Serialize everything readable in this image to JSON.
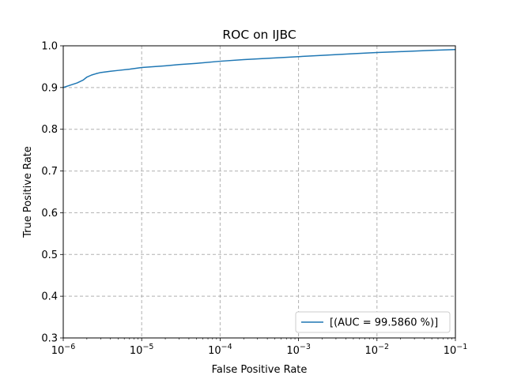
{
  "chart_data": {
    "type": "line",
    "title": "ROC on IJBC",
    "xlabel": "False Positive Rate",
    "ylabel": "True Positive Rate",
    "xscale": "log",
    "xlim": [
      1e-06,
      0.1
    ],
    "ylim": [
      0.3,
      1.0
    ],
    "x_ticks": [
      {
        "value": 1e-06,
        "base": "10",
        "exp": "−6"
      },
      {
        "value": 1e-05,
        "base": "10",
        "exp": "−5"
      },
      {
        "value": 0.0001,
        "base": "10",
        "exp": "−4"
      },
      {
        "value": 0.001,
        "base": "10",
        "exp": "−3"
      },
      {
        "value": 0.01,
        "base": "10",
        "exp": "−2"
      },
      {
        "value": 0.1,
        "base": "10",
        "exp": "−1"
      }
    ],
    "y_ticks": [
      {
        "value": 0.3,
        "label": "0.3"
      },
      {
        "value": 0.4,
        "label": "0.4"
      },
      {
        "value": 0.5,
        "label": "0.5"
      },
      {
        "value": 0.6,
        "label": "0.6"
      },
      {
        "value": 0.7,
        "label": "0.7"
      },
      {
        "value": 0.8,
        "label": "0.8"
      },
      {
        "value": 0.9,
        "label": "0.9"
      },
      {
        "value": 1.0,
        "label": "1.0"
      }
    ],
    "grid": true,
    "legend_position": "lower-right",
    "series": [
      {
        "name": "[(AUC = 99.5860 %)]",
        "color": "#1f77b4",
        "x": [
          1e-06,
          1.2e-06,
          1.5e-06,
          1.8e-06,
          2e-06,
          2.3e-06,
          2.6e-06,
          3e-06,
          4e-06,
          5e-06,
          7e-06,
          1e-05,
          2e-05,
          3e-05,
          5e-05,
          0.0001,
          0.0002,
          0.0005,
          0.001,
          0.002,
          0.005,
          0.01,
          0.02,
          0.05,
          0.1
        ],
        "y": [
          0.9,
          0.905,
          0.911,
          0.918,
          0.925,
          0.93,
          0.933,
          0.936,
          0.939,
          0.941,
          0.944,
          0.948,
          0.952,
          0.955,
          0.958,
          0.963,
          0.967,
          0.971,
          0.974,
          0.977,
          0.981,
          0.984,
          0.986,
          0.989,
          0.991
        ]
      }
    ]
  }
}
